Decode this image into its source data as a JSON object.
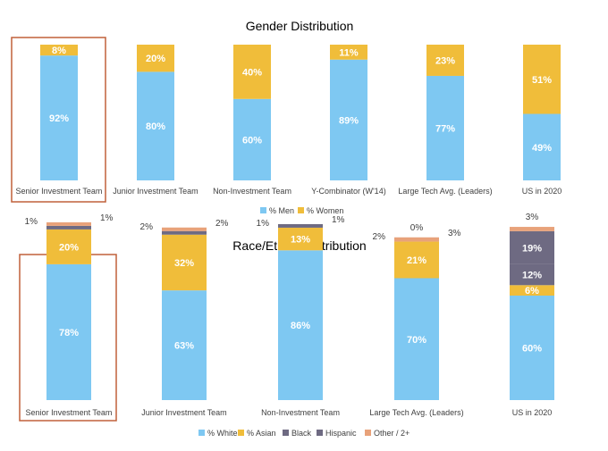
{
  "colors": {
    "men": "#7ec8f2",
    "women": "#f0bd3a",
    "white": "#7ec8f2",
    "asian": "#f0bd3a",
    "black": "#6e6a82",
    "hispanic": "#6e6a82",
    "other": "#e8a27a",
    "highlight_box": "#c0603a",
    "bar_label": "#ffffff",
    "text": "#404040"
  },
  "chart_data": [
    {
      "type": "bar",
      "stacked": true,
      "title": "Gender Distribution",
      "categories": [
        "Senior Investment Team",
        "Junior Investment Team",
        "Non-Investment Team",
        "Y-Combinator (W'14)",
        "Large Tech Avg. (Leaders)",
        "US in 2020"
      ],
      "series": [
        {
          "name": "% Men",
          "values": [
            92,
            80,
            60,
            89,
            77,
            49
          ],
          "color": "#7ec8f2"
        },
        {
          "name": "% Women",
          "values": [
            8,
            20,
            40,
            11,
            23,
            51
          ],
          "color": "#f0bd3a"
        }
      ],
      "ylim": [
        0,
        100
      ],
      "legend": "bottom",
      "highlight_category": "Senior Investment Team"
    },
    {
      "type": "bar",
      "stacked": true,
      "title": "Race/Ethnic Distribution",
      "categories": [
        "Senior Investment Team",
        "Junior Investment Team",
        "Non-Investment Team",
        "Large Tech Avg. (Leaders)",
        "US in 2020"
      ],
      "series": [
        {
          "name": "% White",
          "values": [
            78,
            63,
            86,
            70,
            60
          ],
          "labels": [
            "78%",
            "63%",
            "86%",
            "70%",
            "60%"
          ],
          "color": "#7ec8f2"
        },
        {
          "name": "% Asian",
          "values": [
            20,
            32,
            13,
            21,
            6
          ],
          "labels": [
            "20%",
            "32%",
            "13%",
            "21%",
            "6%"
          ],
          "color": "#f0bd3a"
        },
        {
          "name": "Black",
          "values": [
            1,
            2,
            1,
            0,
            12
          ],
          "labels": [
            "1%",
            "2%",
            "1%",
            "0%",
            "12%"
          ],
          "color": "#6e6a82"
        },
        {
          "name": "Hispanic",
          "values": [
            0,
            0,
            0,
            0,
            19
          ],
          "labels": [
            "",
            "",
            "",
            "",
            "19%"
          ],
          "color": "#6e6a82"
        },
        {
          "name": "Other / 2+",
          "values": [
            1,
            2,
            0,
            3,
            3
          ],
          "labels": [
            "1%",
            "2%",
            "",
            "3%",
            "3%"
          ],
          "color": "#e8a27a"
        }
      ],
      "ylim": [
        0,
        100
      ],
      "legend": "bottom",
      "highlight_category": "Senior Investment Team"
    }
  ]
}
